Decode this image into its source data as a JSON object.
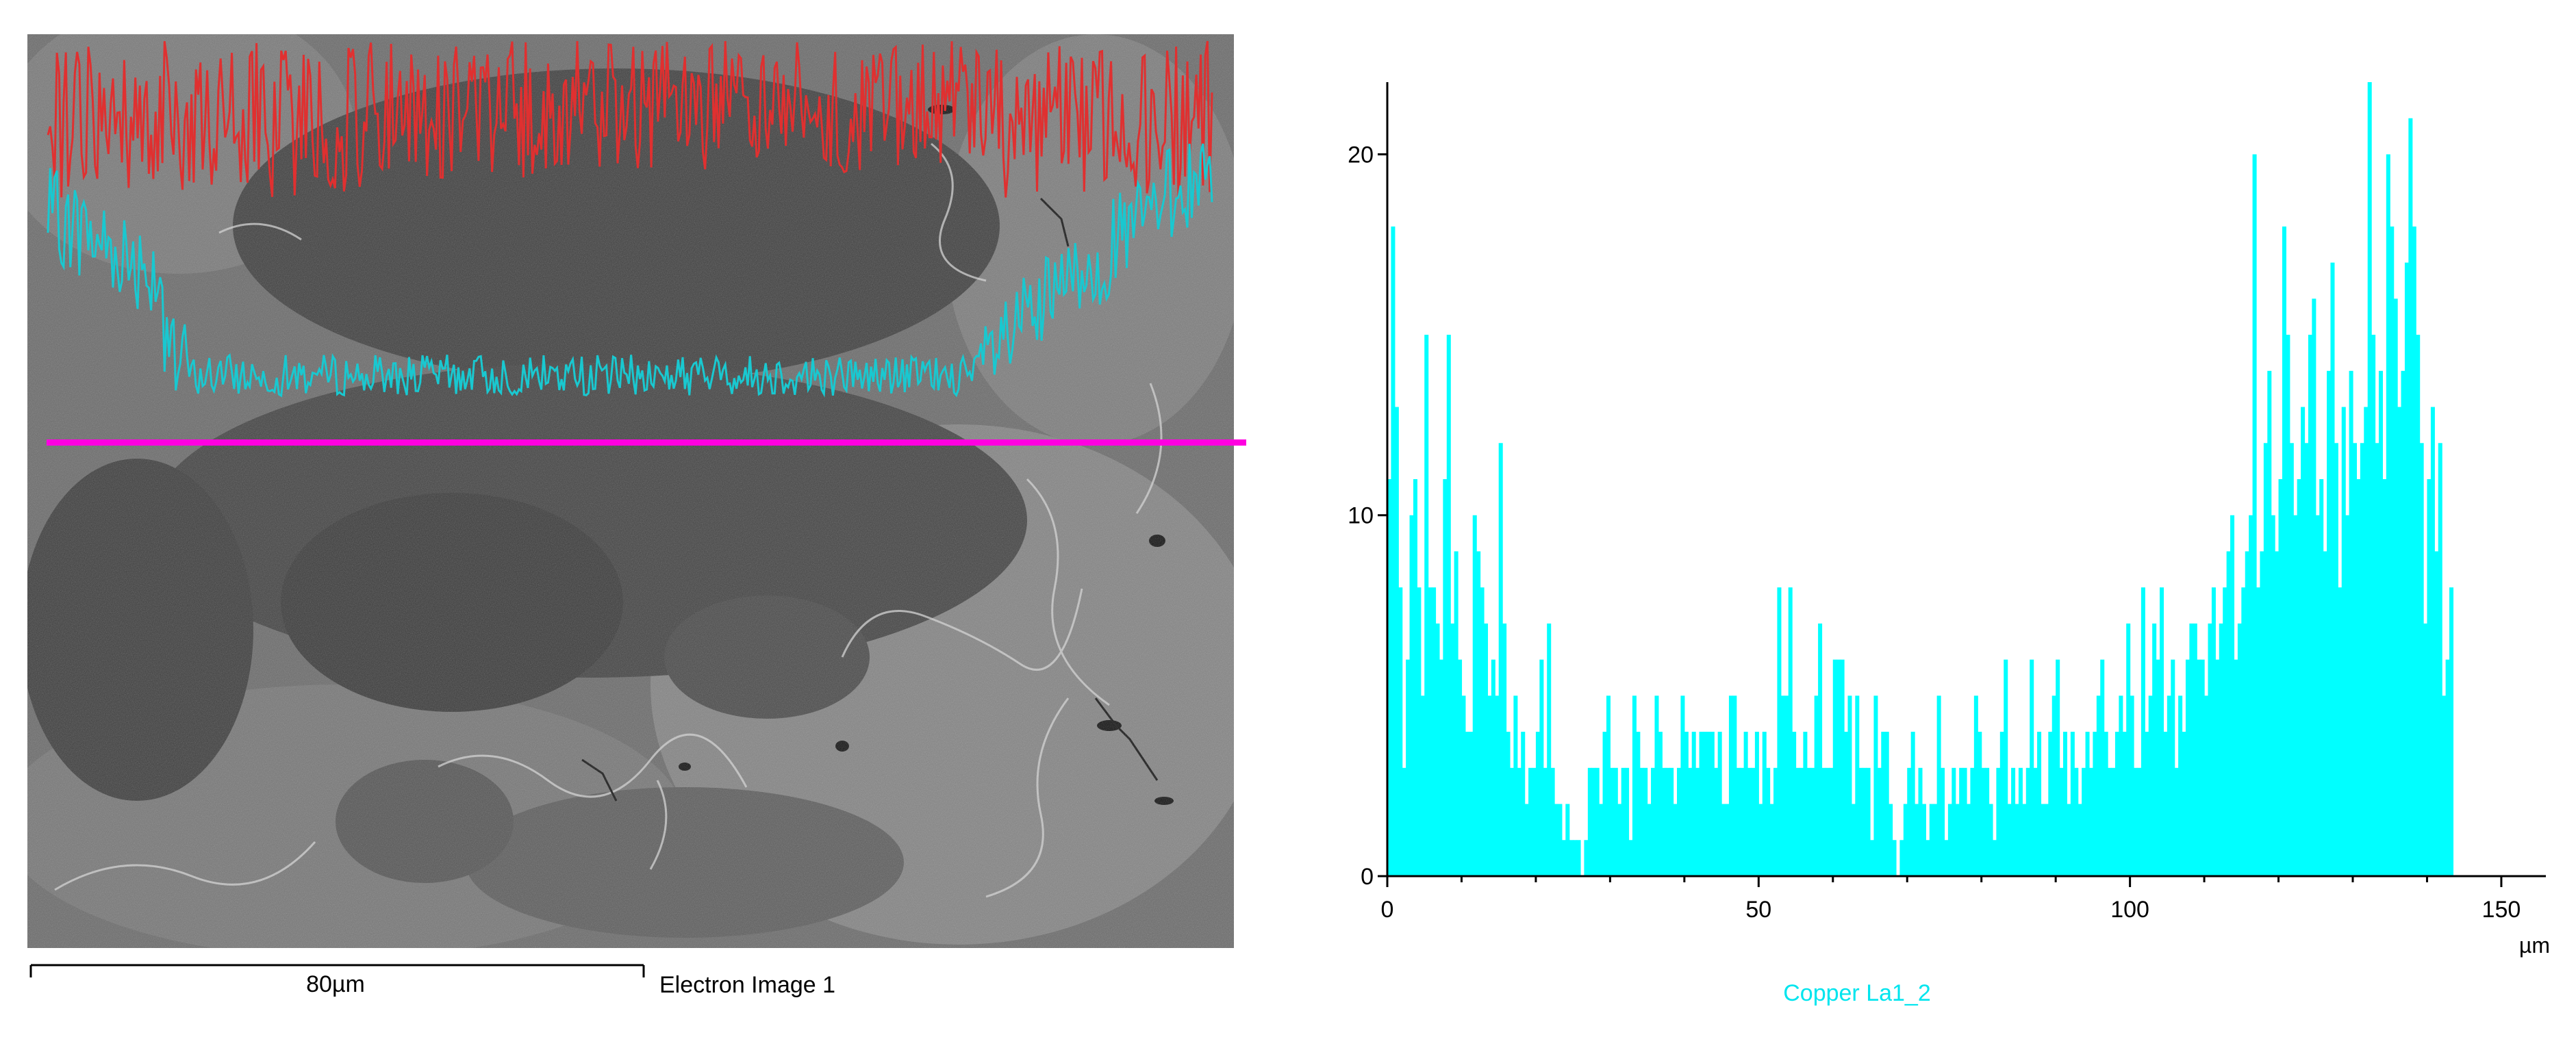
{
  "image_panel": {
    "caption": "Electron Image 1",
    "scale_bar_label": "80µm"
  },
  "chart_data": {
    "type": "bar",
    "title": "",
    "xlabel": "",
    "ylabel": "",
    "x_unit": "µm",
    "xlim": [
      0,
      156
    ],
    "ylim": [
      0,
      22
    ],
    "x_ticks": [
      0,
      50,
      100,
      150
    ],
    "y_ticks": [
      0,
      10,
      20
    ],
    "grid": false,
    "legend_position": "bottom-center",
    "series": [
      {
        "name": "Copper La1_2",
        "color": "#00ffff",
        "x_start": 0,
        "x_step": 0.5,
        "values": [
          11,
          18,
          13,
          8,
          3,
          6,
          10,
          11,
          8,
          5,
          15,
          8,
          8,
          7,
          6,
          11,
          15,
          7,
          9,
          6,
          5,
          4,
          4,
          10,
          9,
          8,
          7,
          5,
          6,
          5,
          12,
          7,
          4,
          3,
          5,
          3,
          4,
          2,
          3,
          3,
          4,
          6,
          3,
          7,
          3,
          2,
          2,
          1,
          2,
          1,
          1,
          1,
          0,
          1,
          3,
          3,
          3,
          2,
          4,
          5,
          3,
          3,
          2,
          3,
          3,
          1,
          5,
          4,
          3,
          3,
          2,
          3,
          5,
          4,
          3,
          3,
          3,
          2,
          3,
          5,
          4,
          3,
          4,
          3,
          4,
          4,
          4,
          4,
          3,
          4,
          2,
          2,
          5,
          5,
          3,
          3,
          4,
          3,
          3,
          4,
          2,
          4,
          3,
          2,
          3,
          8,
          5,
          5,
          8,
          4,
          3,
          3,
          4,
          3,
          3,
          5,
          7,
          3,
          3,
          3,
          6,
          6,
          6,
          4,
          5,
          2,
          5,
          3,
          3,
          3,
          1,
          5,
          3,
          4,
          4,
          2,
          1,
          0,
          1,
          2,
          3,
          4,
          2,
          3,
          2,
          1,
          2,
          2,
          5,
          3,
          1,
          2,
          3,
          2,
          3,
          3,
          2,
          3,
          5,
          4,
          3,
          3,
          2,
          1,
          3,
          4,
          6,
          2,
          3,
          2,
          3,
          2,
          3,
          6,
          3,
          4,
          2,
          2,
          4,
          5,
          6,
          3,
          4,
          2,
          4,
          3,
          2,
          3,
          4,
          3,
          4,
          5,
          6,
          4,
          3,
          3,
          4,
          5,
          4,
          7,
          5,
          3,
          3,
          8,
          4,
          5,
          7,
          6,
          8,
          4,
          5,
          6,
          3,
          5,
          4,
          6,
          7,
          7,
          6,
          6,
          5,
          7,
          8,
          6,
          7,
          8,
          9,
          10,
          6,
          7,
          8,
          9,
          10,
          20,
          8,
          9,
          12,
          14,
          10,
          9,
          11,
          18,
          15,
          12,
          10,
          11,
          13,
          12,
          15,
          16,
          10,
          11,
          9,
          14,
          17,
          12,
          8,
          13,
          10,
          14,
          12,
          11,
          12,
          13,
          22,
          15,
          12,
          14,
          11,
          20,
          18,
          16,
          13,
          14,
          17,
          21,
          18,
          15,
          12,
          7,
          11,
          13,
          9,
          12,
          5,
          6,
          8
        ]
      }
    ]
  }
}
